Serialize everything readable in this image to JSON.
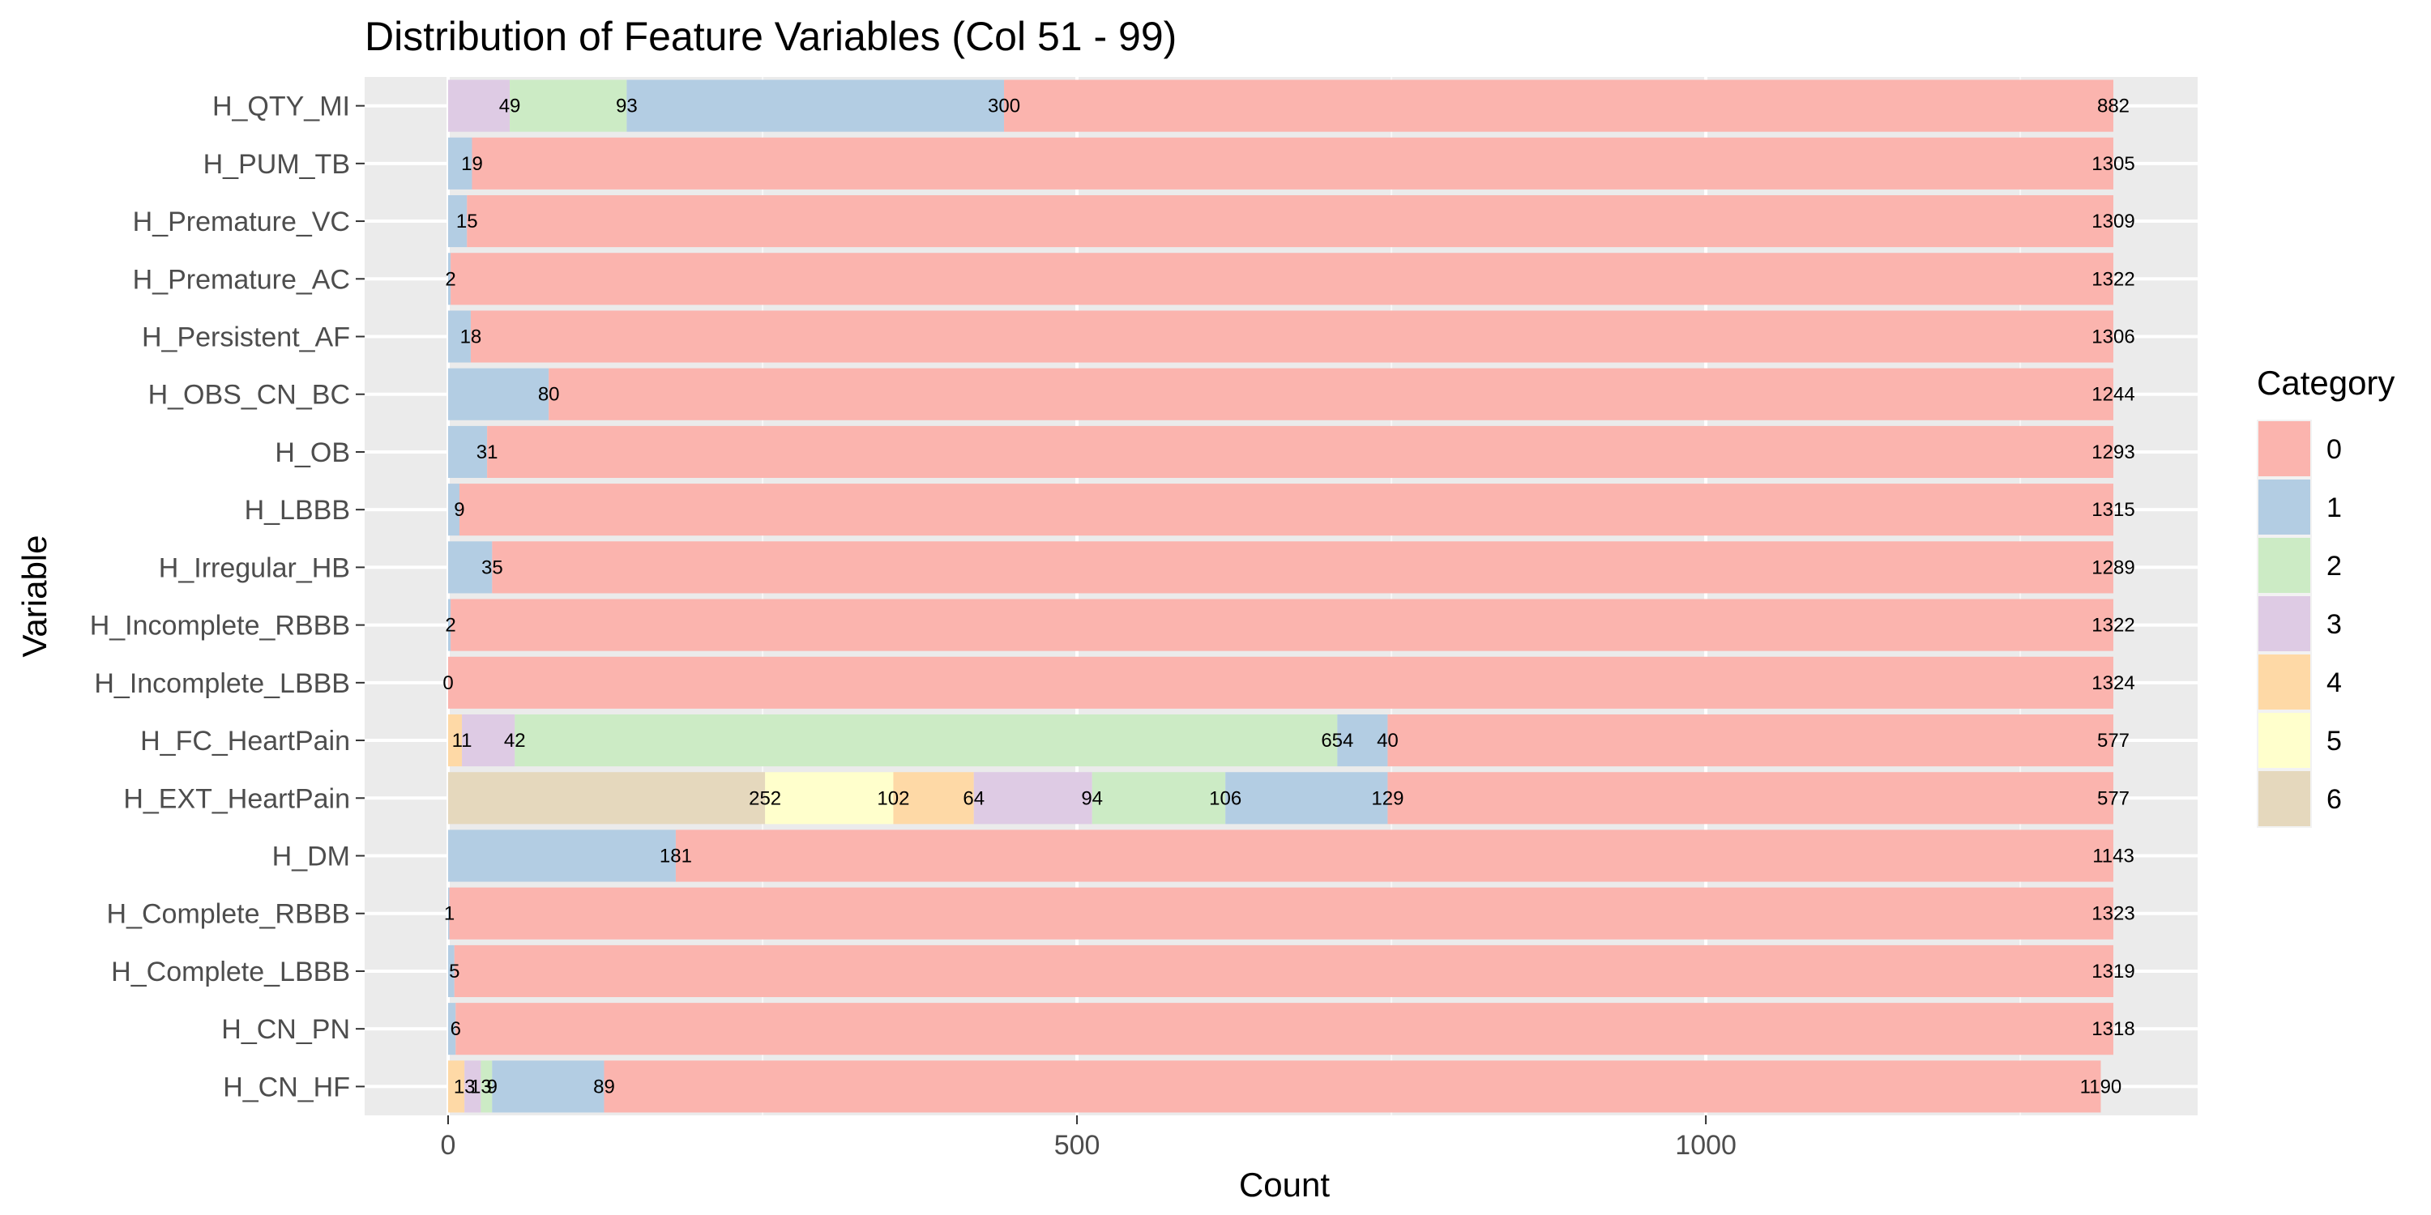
{
  "chart_data": {
    "type": "bar",
    "orientation": "horizontal",
    "stacked": true,
    "title": "Distribution of Feature Variables (Col 51 - 99)",
    "xlabel": "Count",
    "ylabel": "Variable",
    "xlim": [
      0,
      1324
    ],
    "x_ticks": [
      0,
      500,
      1000
    ],
    "grid": true,
    "legend": {
      "title": "Category",
      "position": "right",
      "entries": [
        "0",
        "1",
        "2",
        "3",
        "4",
        "5",
        "6"
      ]
    },
    "colors": {
      "0": "#FBB4AE",
      "1": "#B3CDE3",
      "2": "#CCEBC5",
      "3": "#DECBE4",
      "4": "#FED9A6",
      "5": "#FFFFCC",
      "6": "#E5D8BD"
    },
    "stack_order": [
      "6",
      "5",
      "4",
      "3",
      "2",
      "1",
      "0"
    ],
    "categories": [
      "H_QTY_MI",
      "H_PUM_TB",
      "H_Premature_VC",
      "H_Premature_AC",
      "H_Persistent_AF",
      "H_OBS_CN_BC",
      "H_OB",
      "H_LBBB",
      "H_Irregular_HB",
      "H_Incomplete_RBBB",
      "H_Incomplete_LBBB",
      "H_FC_HeartPain",
      "H_EXT_HeartPain",
      "H_DM",
      "H_Complete_RBBB",
      "H_Complete_LBBB",
      "H_CN_PN",
      "H_CN_HF"
    ],
    "series": [
      {
        "name": "0",
        "values": [
          882,
          1305,
          1309,
          1322,
          1306,
          1244,
          1293,
          1315,
          1289,
          1322,
          1324,
          577,
          577,
          1143,
          1323,
          1319,
          1318,
          1190
        ]
      },
      {
        "name": "1",
        "values": [
          300,
          19,
          15,
          2,
          18,
          80,
          31,
          9,
          35,
          2,
          0,
          40,
          129,
          181,
          1,
          5,
          6,
          89
        ]
      },
      {
        "name": "2",
        "values": [
          93,
          0,
          0,
          0,
          0,
          0,
          0,
          0,
          0,
          0,
          0,
          654,
          106,
          0,
          0,
          0,
          0,
          9
        ]
      },
      {
        "name": "3",
        "values": [
          49,
          0,
          0,
          0,
          0,
          0,
          0,
          0,
          0,
          0,
          0,
          42,
          94,
          0,
          0,
          0,
          0,
          13
        ]
      },
      {
        "name": "4",
        "values": [
          0,
          0,
          0,
          0,
          0,
          0,
          0,
          0,
          0,
          0,
          0,
          11,
          64,
          0,
          0,
          0,
          0,
          13
        ]
      },
      {
        "name": "5",
        "values": [
          0,
          0,
          0,
          0,
          0,
          0,
          0,
          0,
          0,
          0,
          0,
          0,
          102,
          0,
          0,
          0,
          0,
          0
        ]
      },
      {
        "name": "6",
        "values": [
          0,
          0,
          0,
          0,
          0,
          0,
          0,
          0,
          0,
          0,
          0,
          0,
          252,
          0,
          0,
          0,
          0,
          0
        ]
      }
    ]
  }
}
